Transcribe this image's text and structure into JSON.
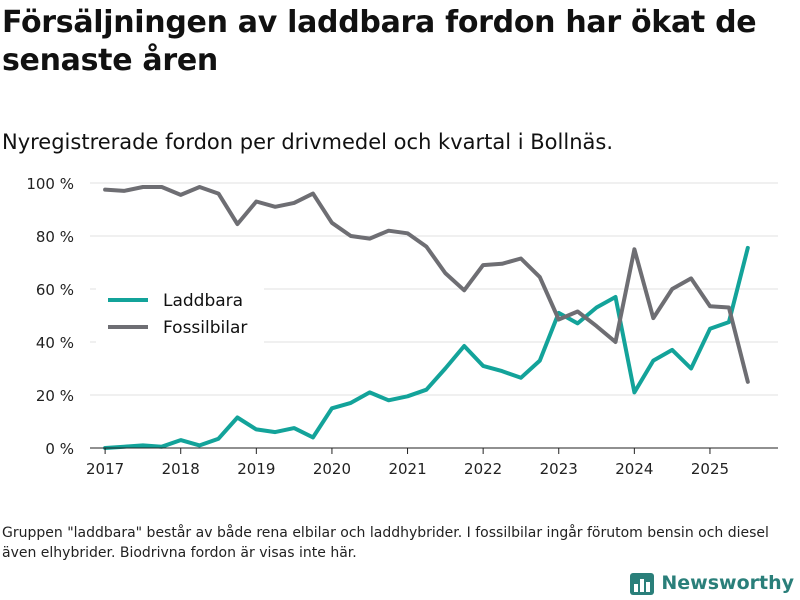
{
  "header": {
    "title": "Försäljningen av laddbara fordon har ökat de senaste åren",
    "subtitle": "Nyregistrerade fordon per drivmedel och kvartal i Bollnäs."
  },
  "footer": {
    "note": "Gruppen \"laddbara\" består av både rena elbilar och laddhybrider. I fossilbilar ingår förutom bensin och diesel även elhybrider. Biodrivna fordon är visas inte här.",
    "brand": "Newsworthy"
  },
  "chart_data": {
    "type": "line",
    "title": "Försäljningen av laddbara fordon har ökat de senaste åren",
    "subtitle": "Nyregistrerade fordon per drivmedel och kvartal i Bollnäs.",
    "xlabel": "",
    "ylabel": "",
    "xlim": [
      2016.8,
      2025.9
    ],
    "ylim": [
      0,
      100
    ],
    "x_ticks": [
      2017,
      2018,
      2019,
      2020,
      2021,
      2022,
      2023,
      2024,
      2025
    ],
    "y_ticks": [
      0,
      20,
      40,
      60,
      80,
      100
    ],
    "y_tick_suffix": " %",
    "grid": true,
    "legend_position": "center-left",
    "x": [
      2017.0,
      2017.25,
      2017.5,
      2017.75,
      2018.0,
      2018.25,
      2018.5,
      2018.75,
      2019.0,
      2019.25,
      2019.5,
      2019.75,
      2020.0,
      2020.25,
      2020.5,
      2020.75,
      2021.0,
      2021.25,
      2021.5,
      2021.75,
      2022.0,
      2022.25,
      2022.5,
      2022.75,
      2023.0,
      2023.25,
      2023.5,
      2023.75,
      2024.0,
      2024.25,
      2024.5,
      2024.75,
      2025.0,
      2025.25,
      2025.5
    ],
    "series": [
      {
        "name": "Laddbara",
        "color": "#13a39a",
        "values": [
          0,
          0.5,
          1,
          0.5,
          3,
          1,
          3.5,
          11.5,
          7,
          6,
          7.5,
          4,
          15,
          17,
          21,
          18,
          19.5,
          22,
          30,
          38.5,
          31,
          29,
          26.5,
          33,
          51,
          47,
          53,
          57,
          21,
          33,
          37,
          30,
          45,
          47.5,
          75.5
        ]
      },
      {
        "name": "Fossilbilar",
        "color": "#6e6e73",
        "values": [
          97.5,
          97,
          98.5,
          98.5,
          95.5,
          98.5,
          96,
          84.5,
          93,
          91,
          92.5,
          96,
          85,
          80,
          79,
          82,
          81,
          76,
          66,
          59.5,
          69,
          69.5,
          71.5,
          64.5,
          48.5,
          51.5,
          46,
          40,
          75,
          49,
          60,
          64,
          53.5,
          53,
          25
        ]
      }
    ]
  }
}
